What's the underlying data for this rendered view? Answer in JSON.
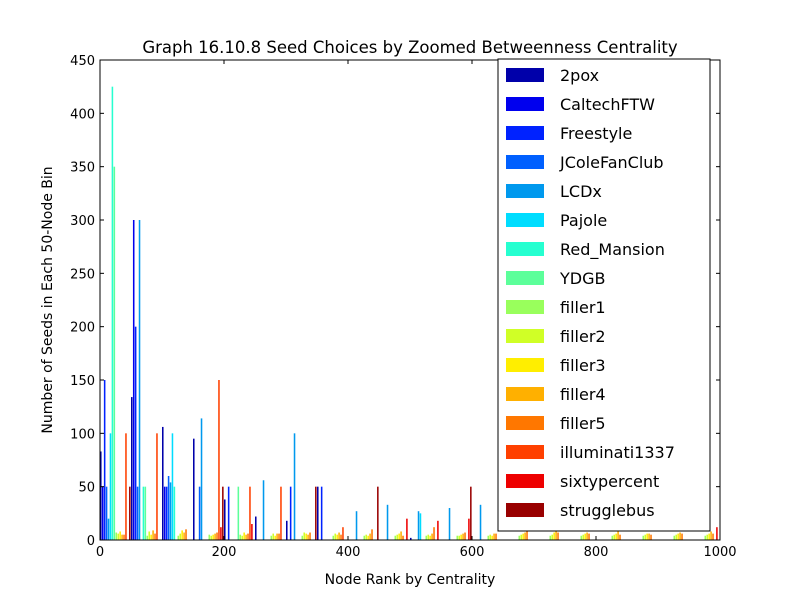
{
  "chart_data": {
    "type": "bar",
    "title": "Graph 16.10.8 Seed Choices by Zoomed Betweenness Centrality",
    "xlabel": "Node Rank by Centrality",
    "ylabel": "Number of Seeds in Each 50-Node Bin",
    "xlim": [
      0,
      1000
    ],
    "ylim": [
      0,
      450
    ],
    "xticks": [
      0,
      200,
      400,
      600,
      800,
      1000
    ],
    "yticks": [
      0,
      50,
      100,
      150,
      200,
      250,
      300,
      350,
      400,
      450
    ],
    "legend_position": "top-right",
    "grid": false,
    "bin_width": 50,
    "bin_starts": [
      0,
      50,
      100,
      150,
      200,
      250,
      300,
      350,
      400,
      450,
      500,
      550,
      600,
      650,
      700,
      750,
      800,
      850,
      900,
      950
    ],
    "series": [
      {
        "name": "2pox",
        "color": "#0000aa",
        "values": [
          83,
          134,
          106,
          95,
          38,
          22,
          18,
          50,
          0,
          0,
          2,
          0,
          0,
          0,
          0,
          0,
          0,
          0,
          0,
          0
        ]
      },
      {
        "name": "CaltechFTW",
        "color": "#0000ee",
        "values": [
          50,
          300,
          50,
          0,
          0,
          0,
          0,
          0,
          0,
          0,
          0,
          0,
          0,
          0,
          0,
          0,
          0,
          0,
          0,
          0
        ]
      },
      {
        "name": "Freestyle",
        "color": "#0022ff",
        "values": [
          150,
          200,
          50,
          0,
          50,
          0,
          50,
          50,
          0,
          0,
          0,
          0,
          0,
          0,
          0,
          0,
          0,
          0,
          0,
          0
        ]
      },
      {
        "name": "JColeFanClub",
        "color": "#0060ff",
        "values": [
          50,
          50,
          60,
          50,
          0,
          0,
          0,
          0,
          0,
          0,
          0,
          0,
          0,
          0,
          0,
          0,
          0,
          0,
          0,
          0
        ]
      },
      {
        "name": "LCDx",
        "color": "#0099ee",
        "values": [
          20,
          300,
          54,
          114,
          0,
          56,
          100,
          0,
          27,
          33,
          27,
          30,
          33,
          0,
          0,
          0,
          0,
          0,
          0,
          0
        ]
      },
      {
        "name": "Pajole",
        "color": "#00ddff",
        "values": [
          100,
          0,
          100,
          0,
          0,
          0,
          0,
          0,
          0,
          0,
          25,
          0,
          0,
          0,
          0,
          0,
          0,
          0,
          0,
          0
        ]
      },
      {
        "name": "Red_Mansion",
        "color": "#26ffd0",
        "values": [
          425,
          50,
          50,
          0,
          0,
          0,
          0,
          0,
          0,
          0,
          0,
          0,
          0,
          0,
          0,
          0,
          0,
          0,
          0,
          0
        ]
      },
      {
        "name": "YDGB",
        "color": "#5cff9a",
        "values": [
          350,
          50,
          0,
          0,
          50,
          0,
          0,
          0,
          0,
          0,
          0,
          0,
          0,
          0,
          0,
          0,
          0,
          0,
          0,
          0
        ]
      },
      {
        "name": "filler1",
        "color": "#99ff5c",
        "values": [
          7,
          4,
          4,
          5,
          5,
          4,
          4,
          4,
          4,
          4,
          4,
          4,
          4,
          4,
          4,
          4,
          4,
          4,
          4,
          4
        ]
      },
      {
        "name": "filler2",
        "color": "#d0ff26",
        "values": [
          6,
          8,
          6,
          4,
          4,
          6,
          7,
          6,
          5,
          5,
          5,
          4,
          5,
          5,
          5,
          5,
          5,
          5,
          5,
          5
        ]
      },
      {
        "name": "filler3",
        "color": "#ffee00",
        "values": [
          8,
          5,
          9,
          5,
          7,
          4,
          6,
          5,
          4,
          6,
          4,
          5,
          4,
          6,
          7,
          6,
          6,
          6,
          6,
          6
        ]
      },
      {
        "name": "filler4",
        "color": "#ffb000",
        "values": [
          5,
          9,
          7,
          6,
          5,
          6,
          5,
          7,
          6,
          8,
          6,
          6,
          6,
          7,
          8,
          7,
          8,
          6,
          7,
          8
        ]
      },
      {
        "name": "filler5",
        "color": "#ff7700",
        "values": [
          5,
          6,
          10,
          7,
          6,
          6,
          7,
          5,
          10,
          4,
          12,
          7,
          6,
          8,
          7,
          6,
          5,
          5,
          6,
          6
        ]
      },
      {
        "name": "illuminati1337",
        "color": "#ff4000",
        "values": [
          100,
          100,
          0,
          150,
          50,
          50,
          0,
          12,
          0,
          0,
          0,
          0,
          0,
          0,
          0,
          0,
          0,
          0,
          0,
          0
        ]
      },
      {
        "name": "sixtypercent",
        "color": "#ee0000",
        "values": [
          0,
          0,
          0,
          12,
          15,
          0,
          0,
          0,
          0,
          20,
          18,
          20,
          0,
          0,
          0,
          0,
          0,
          0,
          0,
          12
        ]
      },
      {
        "name": "strugglebus",
        "color": "#990000",
        "values": [
          50,
          0,
          0,
          50,
          0,
          0,
          50,
          0,
          50,
          0,
          0,
          50,
          0,
          0,
          0,
          0,
          0,
          0,
          0,
          0
        ]
      }
    ]
  }
}
